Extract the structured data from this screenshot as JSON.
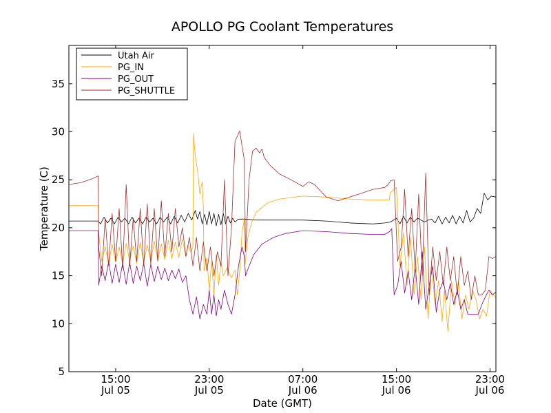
{
  "chart_data": {
    "type": "line",
    "title": "APOLLO PG Coolant Temperatures",
    "xlabel": "Date (GMT)",
    "ylabel": "Temperature (C)",
    "x_unit": "hours since Jul 05 11:00 GMT",
    "xlim": [
      0,
      36.5
    ],
    "ylim": [
      5,
      39
    ],
    "yticks": [
      5,
      10,
      15,
      20,
      25,
      30,
      35
    ],
    "xticks": [
      {
        "x": 4,
        "label1": "15:00",
        "label2": "Jul 05"
      },
      {
        "x": 12,
        "label1": "23:00",
        "label2": "Jul 05"
      },
      {
        "x": 20,
        "label1": "07:00",
        "label2": "Jul 06"
      },
      {
        "x": 28,
        "label1": "15:00",
        "label2": "Jul 06"
      },
      {
        "x": 36,
        "label1": "23:00",
        "label2": "Jul 06"
      }
    ],
    "legend_position": "top-left",
    "series": [
      {
        "name": "Utah Air",
        "color": "#000000",
        "x": [
          0,
          2.5,
          2.7,
          3.0,
          3.3,
          3.6,
          3.9,
          4.2,
          4.5,
          4.8,
          5.1,
          5.4,
          5.7,
          6.0,
          6.3,
          6.6,
          6.9,
          7.2,
          7.5,
          7.8,
          8.1,
          8.4,
          8.7,
          9.0,
          9.3,
          9.6,
          9.9,
          10.2,
          10.5,
          10.8,
          11.0,
          11.2,
          11.4,
          11.6,
          11.8,
          12.0,
          12.2,
          12.4,
          12.6,
          12.8,
          13.0,
          13.2,
          13.4,
          13.6,
          13.8,
          14.0,
          14.2,
          14.5,
          15,
          16,
          17,
          18,
          20,
          22,
          24,
          26,
          27,
          27.5,
          28,
          28.3,
          28.6,
          28.9,
          29.2,
          29.5,
          29.8,
          30.1,
          30.4,
          30.7,
          31.0,
          31.3,
          31.6,
          31.9,
          32.2,
          32.5,
          32.8,
          33.1,
          33.4,
          33.7,
          34.0,
          34.3,
          34.6,
          34.9,
          35.2,
          35.5,
          35.8,
          36.1,
          36.5
        ],
        "y": [
          20.7,
          20.7,
          20.4,
          21.1,
          20.5,
          21.0,
          20.4,
          21.1,
          20.6,
          21.0,
          20.4,
          21.1,
          20.5,
          21.0,
          20.4,
          21.1,
          20.6,
          21.0,
          20.4,
          21.1,
          20.6,
          21.1,
          20.4,
          21.2,
          20.5,
          21.3,
          20.6,
          21.5,
          20.8,
          21.8,
          20.9,
          21.7,
          20.4,
          21.4,
          20.3,
          21.7,
          20.4,
          21.5,
          20.2,
          21.4,
          20.3,
          21.5,
          20.4,
          21.2,
          20.5,
          21.0,
          20.6,
          20.9,
          20.9,
          20.8,
          20.8,
          20.8,
          20.8,
          20.7,
          20.5,
          20.4,
          20.5,
          20.6,
          21.0,
          20.4,
          21.2,
          20.5,
          21.1,
          20.6,
          21.0,
          20.8,
          20.6,
          20.8,
          20.9,
          20.5,
          21.2,
          20.4,
          21.1,
          20.5,
          21.3,
          20.4,
          21.2,
          20.5,
          21.8,
          20.6,
          21.0,
          22.0,
          21.5,
          23.6,
          22.9,
          23.3,
          23.2
        ]
      },
      {
        "name": "PG_IN",
        "color": "#ffa500",
        "x": [
          0,
          2.5,
          2.55,
          2.8,
          3.1,
          3.4,
          3.7,
          4.0,
          4.3,
          4.6,
          4.9,
          5.2,
          5.5,
          5.8,
          6.1,
          6.4,
          6.7,
          7.0,
          7.3,
          7.6,
          7.9,
          8.2,
          8.5,
          8.8,
          9.1,
          9.4,
          9.7,
          10.0,
          10.2,
          10.4,
          10.6,
          10.65,
          10.8,
          11.0,
          11.2,
          11.4,
          11.5,
          11.55,
          11.8,
          12.0,
          12.2,
          12.4,
          12.6,
          12.8,
          13.0,
          13.2,
          13.5,
          13.9,
          14.2,
          14.4,
          14.6,
          14.8,
          15.0,
          15.05,
          15.3,
          15.6,
          16,
          17,
          18,
          20,
          22,
          24,
          26,
          27,
          27.4,
          27.45,
          27.8,
          28.0,
          28.3,
          28.6,
          28.9,
          29.2,
          29.5,
          29.8,
          30.1,
          30.4,
          30.7,
          31.0,
          31.3,
          31.6,
          31.9,
          32.1,
          32.4,
          32.7,
          33.0,
          33.3,
          33.6,
          33.9,
          34.2,
          34.5,
          34.8,
          35.1,
          35.4,
          35.7,
          36.0,
          36.5
        ],
        "y": [
          22.3,
          22.3,
          19.5,
          16.5,
          18.0,
          16.2,
          18.3,
          16.4,
          18.0,
          16.2,
          18.4,
          16.5,
          18.1,
          16.3,
          18.5,
          16.4,
          18.2,
          16.5,
          18.6,
          16.6,
          18.3,
          16.7,
          18.7,
          16.8,
          18.5,
          16.9,
          18.8,
          17.0,
          18.2,
          17.5,
          18.0,
          29.8,
          27.5,
          26.0,
          23.5,
          24.8,
          22.0,
          15.5,
          16.8,
          13.5,
          16.5,
          13.0,
          17.2,
          14.0,
          16.5,
          15.0,
          15.8,
          14.8,
          15.6,
          13.0,
          15.5,
          19.5,
          21.0,
          16.0,
          19.0,
          20.5,
          21.6,
          22.6,
          23.0,
          23.3,
          23.2,
          23.0,
          22.9,
          22.9,
          22.9,
          23.6,
          24.0,
          24.2,
          16.0,
          19.5,
          14.0,
          19.0,
          13.0,
          17.0,
          12.5,
          18.0,
          10.5,
          16.0,
          12.0,
          14.5,
          10.2,
          13.5,
          9.2,
          14.5,
          12.0,
          14.5,
          10.5,
          13.0,
          11.5,
          13.5,
          12.5,
          10.5,
          11.5,
          10.8,
          13.5,
          12.7
        ]
      },
      {
        "name": "PG_OUT",
        "color": "#800080",
        "x": [
          0,
          2.5,
          2.55,
          2.8,
          3.1,
          3.4,
          3.7,
          4.0,
          4.3,
          4.6,
          4.9,
          5.2,
          5.5,
          5.8,
          6.1,
          6.4,
          6.7,
          7.0,
          7.3,
          7.6,
          7.9,
          8.2,
          8.5,
          8.8,
          9.1,
          9.4,
          9.7,
          10.0,
          10.3,
          10.6,
          10.9,
          11.2,
          11.5,
          11.8,
          12.0,
          12.2,
          12.4,
          12.6,
          12.8,
          13.0,
          13.3,
          13.6,
          13.9,
          14.2,
          14.5,
          14.8,
          15.0,
          15.1,
          15.4,
          15.8,
          16.5,
          17.5,
          18.5,
          20,
          22,
          24,
          26,
          27,
          27.4,
          27.6,
          27.8,
          28.1,
          28.4,
          28.7,
          29.0,
          29.3,
          29.6,
          29.9,
          30.2,
          30.5,
          30.8,
          31.1,
          31.4,
          31.7,
          32.0,
          32.3,
          32.6,
          32.9,
          33.2,
          33.5,
          33.8,
          34.1,
          34.4,
          34.7,
          35.0,
          35.3,
          35.6,
          35.9,
          36.2,
          36.5
        ],
        "y": [
          19.7,
          19.7,
          14.0,
          16.0,
          14.5,
          16.5,
          14.2,
          16.2,
          14.3,
          16.3,
          14.1,
          16.4,
          14.2,
          16.0,
          14.5,
          16.3,
          13.9,
          16.2,
          14.4,
          16.0,
          14.6,
          15.8,
          14.5,
          15.6,
          14.7,
          15.7,
          14.3,
          15.0,
          12.5,
          11.0,
          12.8,
          10.5,
          12.0,
          11.0,
          13.5,
          11.0,
          13.0,
          10.8,
          12.5,
          11.5,
          13.5,
          12.0,
          11.0,
          13.0,
          16.0,
          18.0,
          17.0,
          15.0,
          16.0,
          17.2,
          18.3,
          19.0,
          19.4,
          19.7,
          19.6,
          19.4,
          19.3,
          19.3,
          19.6,
          19.9,
          13.0,
          14.0,
          16.5,
          13.2,
          15.5,
          12.5,
          16.0,
          12.0,
          17.5,
          11.5,
          14.0,
          16.0,
          11.2,
          13.5,
          14.5,
          12.5,
          14.2,
          12.0,
          13.5,
          11.5,
          12.5,
          11.0,
          11.0,
          11.0,
          11.0,
          12.0,
          12.8,
          13.5,
          13.0,
          13.3
        ]
      },
      {
        "name": "PG_SHUTTLE",
        "color": "#a52a2a",
        "x": [
          0,
          1,
          2,
          2.5,
          2.55,
          2.8,
          3.1,
          3.4,
          3.7,
          4.0,
          4.3,
          4.6,
          4.9,
          5.2,
          5.5,
          5.8,
          6.1,
          6.4,
          6.7,
          7.0,
          7.3,
          7.6,
          7.9,
          8.2,
          8.5,
          8.8,
          9.1,
          9.4,
          9.7,
          10.0,
          10.3,
          10.6,
          10.9,
          11.2,
          11.5,
          11.8,
          12.1,
          12.4,
          12.7,
          13.0,
          13.3,
          13.6,
          13.9,
          14.2,
          14.6,
          15.0,
          15.1,
          15.4,
          15.7,
          16.0,
          16.3,
          16.5,
          16.7,
          17.2,
          18,
          19,
          20,
          20.5,
          21,
          22,
          23,
          24,
          25,
          26,
          27,
          27.3,
          27.5,
          27.8,
          28.1,
          28.4,
          28.7,
          29.0,
          29.3,
          29.6,
          29.9,
          30.2,
          30.5,
          30.8,
          31.1,
          31.4,
          31.7,
          32.0,
          32.3,
          32.6,
          32.9,
          33.2,
          33.5,
          33.8,
          34.1,
          34.4,
          34.7,
          35.0,
          35.3,
          35.6,
          35.9,
          36.2,
          36.5
        ],
        "y": [
          24.5,
          24.7,
          25.1,
          25.4,
          18.0,
          15.0,
          21.0,
          16.0,
          21.5,
          16.5,
          22.0,
          15.8,
          24.5,
          16.0,
          21.0,
          16.5,
          22.0,
          16.0,
          22.5,
          16.2,
          22.0,
          16.5,
          22.8,
          17.0,
          21.5,
          17.5,
          22.0,
          18.0,
          20.0,
          17.0,
          19.0,
          16.0,
          19.0,
          15.5,
          18.5,
          15.5,
          18.0,
          15.0,
          17.5,
          16.0,
          25.0,
          15.0,
          20.0,
          29.0,
          30.1,
          27.0,
          17.5,
          25.0,
          28.0,
          28.3,
          27.8,
          28.2,
          27.3,
          26.5,
          25.6,
          25.0,
          24.3,
          24.8,
          24.5,
          23.2,
          22.8,
          23.2,
          23.6,
          24.0,
          24.2,
          24.5,
          24.9,
          25.0,
          16.5,
          18.0,
          24.0,
          17.0,
          22.0,
          15.5,
          23.5,
          15.0,
          25.7,
          13.0,
          18.0,
          14.5,
          17.5,
          14.0,
          18.0,
          14.5,
          17.0,
          13.0,
          17.0,
          14.0,
          15.5,
          12.5,
          15.0,
          13.0,
          13.0,
          13.5,
          17.0,
          16.8,
          17.0
        ]
      }
    ]
  }
}
